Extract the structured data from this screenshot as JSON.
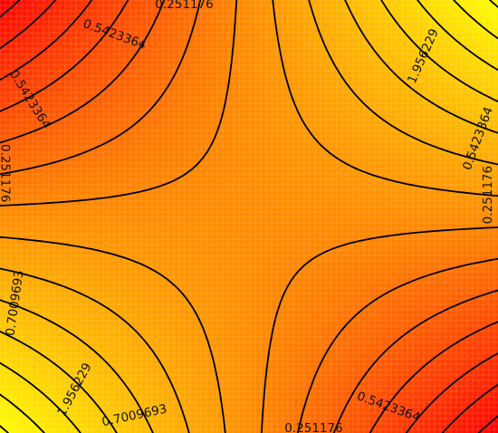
{
  "chart_data": {
    "type": "heatmap",
    "subtype": "filled contour plot with contour lines",
    "title": "",
    "xlabel": "",
    "ylabel": "",
    "colormap": {
      "low": "#ff0000",
      "mid": "#ff8c00",
      "high": "#ffff00"
    },
    "grid": true,
    "grid_color": "#ffffff",
    "value_range": [
      0.1,
      2.1
    ],
    "function": "z = 1.1 + (x - 0.5) * (y - 0.5) * 3.8",
    "contour_levels": [
      0.251176,
      0.5423364,
      0.7009693,
      1.956229
    ],
    "contour_labels": [
      {
        "text": "0.251176",
        "x": 0.37,
        "y": 0.99,
        "angle": 0
      },
      {
        "text": "0.5423364",
        "x": 0.23,
        "y": 0.92,
        "angle": 20
      },
      {
        "text": "0.5423364",
        "x": 0.06,
        "y": 0.77,
        "angle": 58
      },
      {
        "text": "0.251176",
        "x": 0.01,
        "y": 0.6,
        "angle": 90
      },
      {
        "text": "0.7009693",
        "x": 0.03,
        "y": 0.3,
        "angle": -82
      },
      {
        "text": "1.956229",
        "x": 0.15,
        "y": 0.1,
        "angle": -62
      },
      {
        "text": "0.7009693",
        "x": 0.27,
        "y": 0.04,
        "angle": -12
      },
      {
        "text": "0.5423364",
        "x": 0.78,
        "y": 0.06,
        "angle": 20
      },
      {
        "text": "0.251176",
        "x": 0.63,
        "y": 0.01,
        "angle": 0
      },
      {
        "text": "1.956229",
        "x": 0.85,
        "y": 0.87,
        "angle": -66
      },
      {
        "text": "0.5423364",
        "x": 0.96,
        "y": 0.68,
        "angle": -70
      },
      {
        "text": "0.251176",
        "x": 0.98,
        "y": 0.55,
        "angle": -90
      }
    ],
    "labels": {
      "l1": "0.251176",
      "l2": "0.5423364",
      "l3": "0.5423364",
      "l4": "0.251176",
      "l5": "0.7009693",
      "l6": "1.956229",
      "l7": "0.7009693",
      "l8": "0.5423364",
      "l9": "0.251176",
      "l10": "1.956229",
      "l11": "0.5423364",
      "l12": "0.251176"
    }
  }
}
